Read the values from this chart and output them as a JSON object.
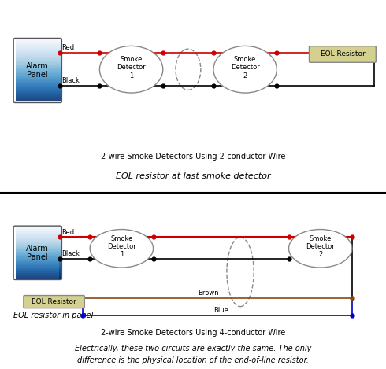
{
  "bg_color": "#ffffff",
  "eol_color": "#d4d090",
  "red_wire": "#cc0000",
  "black_wire": "#000000",
  "brown_wire": "#8B4513",
  "blue_wire": "#0000cc",
  "dot_red": "#cc0000",
  "dot_black": "#000000",
  "title1": "2-wire Smoke Detectors Using 2-conductor Wire",
  "label1": "EOL resistor at last smoke detector",
  "title2": "2-wire Smoke Detectors Using 4-conductor Wire",
  "label2": "EOL resistor in panel",
  "bottom_text1": "Electrically, these two circuits are exactly the same. The only",
  "bottom_text2": "difference is the physical location of the end-of-line resistor."
}
